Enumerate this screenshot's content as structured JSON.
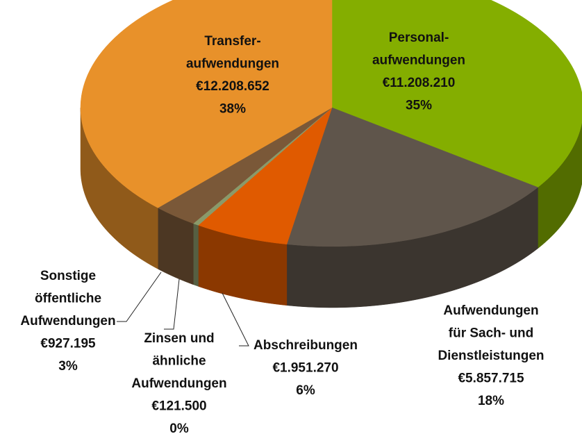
{
  "chart_data": {
    "type": "pie3d",
    "categories": [
      [
        "Personal-",
        "aufwendungen"
      ],
      [
        "Aufwendungen",
        "für Sach- und",
        "Dienstleistungen"
      ],
      [
        "Abschreibungen"
      ],
      [
        "Zinsen und",
        "ähnliche",
        "Aufwendungen"
      ],
      [
        "Sonstige",
        "öffentliche",
        "Aufwendungen"
      ],
      [
        "Transfer-",
        "aufwendungen"
      ]
    ],
    "values": [
      11208210,
      5857715,
      1951270,
      121500,
      927195,
      12208652
    ],
    "value_labels": [
      "€11.208.210",
      "€5.857.715",
      "€1.951.270",
      "€121.500",
      "€927.195",
      "€12.208.652"
    ],
    "percentages": [
      35,
      18,
      6,
      0,
      3,
      38
    ],
    "percentage_labels": [
      "35%",
      "18%",
      "6%",
      "0%",
      "3%",
      "38%"
    ],
    "colors": [
      "#84ae00",
      "#5f554b",
      "#e05a00",
      "#8a9a6a",
      "#7a5838",
      "#e8912a"
    ]
  }
}
